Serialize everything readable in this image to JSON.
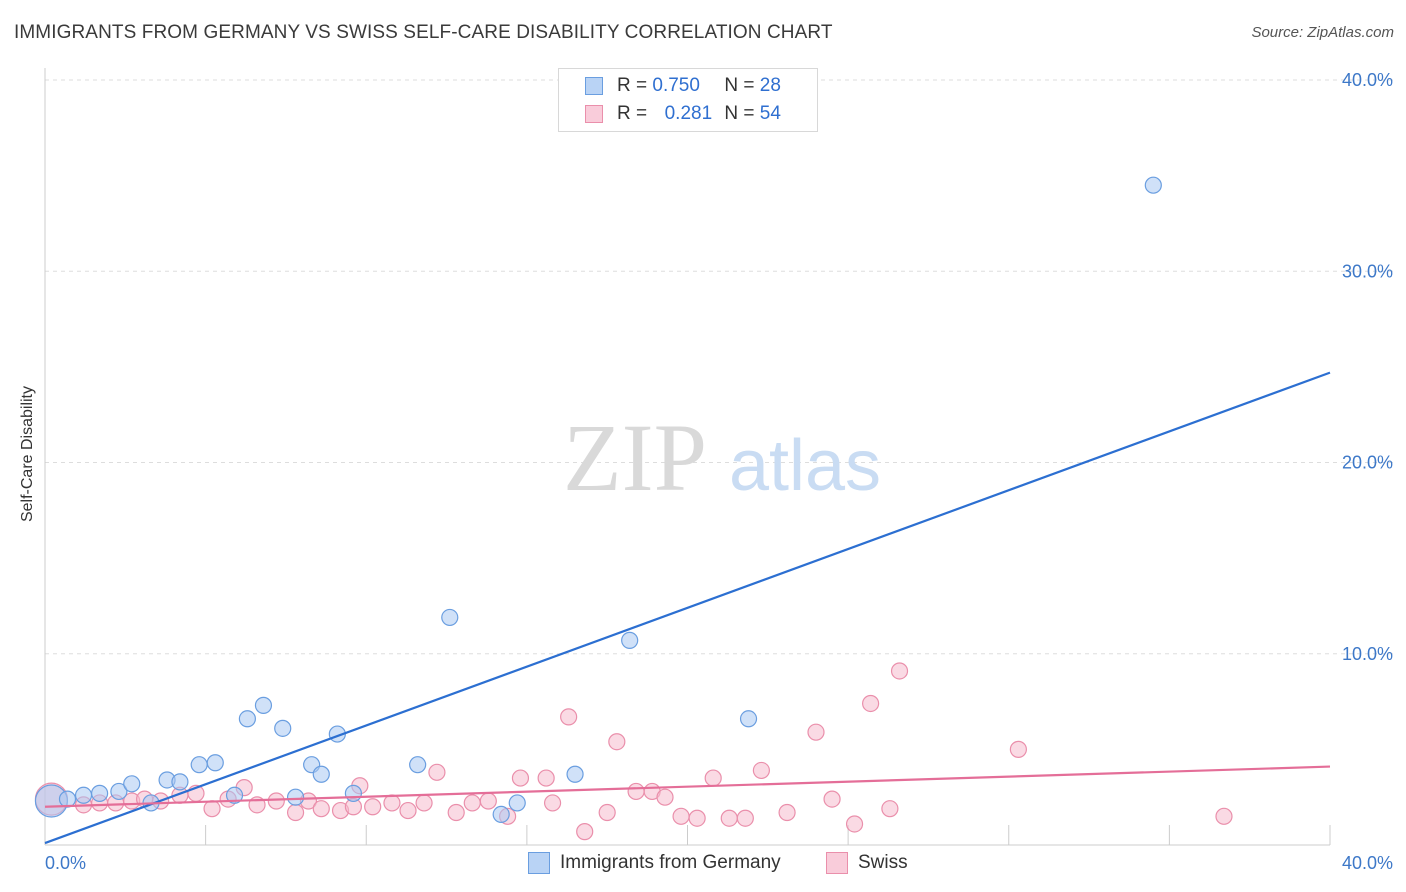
{
  "header": {
    "title": "IMMIGRANTS FROM GERMANY VS SWISS SELF-CARE DISABILITY CORRELATION CHART",
    "source": "Source: ZipAtlas.com"
  },
  "watermark": {
    "zip": "ZIP",
    "atlas": "atlas"
  },
  "legend": {
    "rows": [
      {
        "r_label": "R =",
        "r_value": "0.750",
        "n_label": "N =",
        "n_value": "28"
      },
      {
        "r_label": "R =",
        "r_value": "0.281",
        "n_label": "N =",
        "n_value": "54"
      }
    ]
  },
  "bottom_legend": {
    "series1": "Immigrants from Germany",
    "series2": "Swiss"
  },
  "colors": {
    "blue_fill": "#a9c8f2",
    "blue_stroke": "#6a9ee0",
    "blue_line": "#2c6fd1",
    "pink_fill": "#f6bccd",
    "pink_stroke": "#ea8fab",
    "pink_line": "#e46e98",
    "tick_text": "#3d78c8",
    "grid": "#dddddd"
  },
  "chart_data": {
    "type": "scatter",
    "title": "IMMIGRANTS FROM GERMANY VS SWISS SELF-CARE DISABILITY CORRELATION CHART",
    "xlabel": "",
    "ylabel": "Self-Care Disability",
    "xlim": [
      0,
      40
    ],
    "ylim": [
      0,
      40
    ],
    "x_tick_labels": [
      "0.0%",
      "40.0%"
    ],
    "y_ticks": [
      10,
      20,
      30,
      40
    ],
    "y_tick_labels": [
      "10.0%",
      "20.0%",
      "30.0%",
      "40.0%"
    ],
    "grid": true,
    "legend_position": "top-center",
    "series": [
      {
        "name": "Immigrants from Germany",
        "color": "#a9c8f2",
        "trend": {
          "x": [
            0,
            40
          ],
          "y": [
            0.1,
            24.7
          ]
        },
        "points": [
          {
            "x": 0.2,
            "y": 2.3,
            "big": true
          },
          {
            "x": 0.7,
            "y": 2.4
          },
          {
            "x": 1.2,
            "y": 2.6
          },
          {
            "x": 1.7,
            "y": 2.7
          },
          {
            "x": 2.3,
            "y": 2.8
          },
          {
            "x": 2.7,
            "y": 3.2
          },
          {
            "x": 3.3,
            "y": 2.2
          },
          {
            "x": 3.8,
            "y": 3.4
          },
          {
            "x": 4.2,
            "y": 3.3
          },
          {
            "x": 4.8,
            "y": 4.2
          },
          {
            "x": 5.3,
            "y": 4.3
          },
          {
            "x": 5.9,
            "y": 2.6
          },
          {
            "x": 6.3,
            "y": 6.6
          },
          {
            "x": 6.8,
            "y": 7.3
          },
          {
            "x": 7.4,
            "y": 6.1
          },
          {
            "x": 7.8,
            "y": 2.5
          },
          {
            "x": 8.3,
            "y": 4.2
          },
          {
            "x": 8.6,
            "y": 3.7
          },
          {
            "x": 9.1,
            "y": 5.8
          },
          {
            "x": 9.6,
            "y": 2.7
          },
          {
            "x": 11.6,
            "y": 4.2
          },
          {
            "x": 12.6,
            "y": 11.9
          },
          {
            "x": 14.2,
            "y": 1.6
          },
          {
            "x": 14.7,
            "y": 2.2
          },
          {
            "x": 16.5,
            "y": 3.7
          },
          {
            "x": 18.2,
            "y": 10.7
          },
          {
            "x": 21.9,
            "y": 6.6
          },
          {
            "x": 34.5,
            "y": 34.5
          }
        ]
      },
      {
        "name": "Swiss",
        "color": "#f6bccd",
        "trend": {
          "x": [
            0,
            40
          ],
          "y": [
            2.0,
            4.1
          ]
        },
        "points": [
          {
            "x": 0.2,
            "y": 2.4,
            "big": true
          },
          {
            "x": 1.2,
            "y": 2.1
          },
          {
            "x": 1.7,
            "y": 2.2
          },
          {
            "x": 2.2,
            "y": 2.2
          },
          {
            "x": 2.7,
            "y": 2.3
          },
          {
            "x": 3.1,
            "y": 2.4
          },
          {
            "x": 3.6,
            "y": 2.3
          },
          {
            "x": 4.2,
            "y": 2.6
          },
          {
            "x": 4.7,
            "y": 2.7
          },
          {
            "x": 5.2,
            "y": 1.9
          },
          {
            "x": 5.7,
            "y": 2.4
          },
          {
            "x": 6.2,
            "y": 3.0
          },
          {
            "x": 6.6,
            "y": 2.1
          },
          {
            "x": 7.2,
            "y": 2.3
          },
          {
            "x": 7.8,
            "y": 1.7
          },
          {
            "x": 8.2,
            "y": 2.3
          },
          {
            "x": 8.6,
            "y": 1.9
          },
          {
            "x": 9.2,
            "y": 1.8
          },
          {
            "x": 9.6,
            "y": 2.0
          },
          {
            "x": 9.8,
            "y": 3.1
          },
          {
            "x": 10.2,
            "y": 2.0
          },
          {
            "x": 10.8,
            "y": 2.2
          },
          {
            "x": 11.3,
            "y": 1.8
          },
          {
            "x": 11.8,
            "y": 2.2
          },
          {
            "x": 12.2,
            "y": 3.8
          },
          {
            "x": 12.8,
            "y": 1.7
          },
          {
            "x": 13.3,
            "y": 2.2
          },
          {
            "x": 13.8,
            "y": 2.3
          },
          {
            "x": 14.4,
            "y": 1.5
          },
          {
            "x": 14.8,
            "y": 3.5
          },
          {
            "x": 15.6,
            "y": 3.5
          },
          {
            "x": 15.8,
            "y": 2.2
          },
          {
            "x": 16.3,
            "y": 6.7
          },
          {
            "x": 16.8,
            "y": 0.7
          },
          {
            "x": 17.5,
            "y": 1.7
          },
          {
            "x": 17.8,
            "y": 5.4
          },
          {
            "x": 18.4,
            "y": 2.8
          },
          {
            "x": 18.9,
            "y": 2.8
          },
          {
            "x": 19.3,
            "y": 2.5
          },
          {
            "x": 19.8,
            "y": 1.5
          },
          {
            "x": 20.3,
            "y": 1.4
          },
          {
            "x": 20.8,
            "y": 3.5
          },
          {
            "x": 21.3,
            "y": 1.4
          },
          {
            "x": 21.8,
            "y": 1.4
          },
          {
            "x": 22.3,
            "y": 3.9
          },
          {
            "x": 23.1,
            "y": 1.7
          },
          {
            "x": 24.0,
            "y": 5.9
          },
          {
            "x": 24.5,
            "y": 2.4
          },
          {
            "x": 25.2,
            "y": 1.1
          },
          {
            "x": 25.7,
            "y": 7.4
          },
          {
            "x": 26.3,
            "y": 1.9
          },
          {
            "x": 26.6,
            "y": 9.1
          },
          {
            "x": 30.3,
            "y": 5.0
          },
          {
            "x": 36.7,
            "y": 1.5
          }
        ]
      }
    ]
  }
}
